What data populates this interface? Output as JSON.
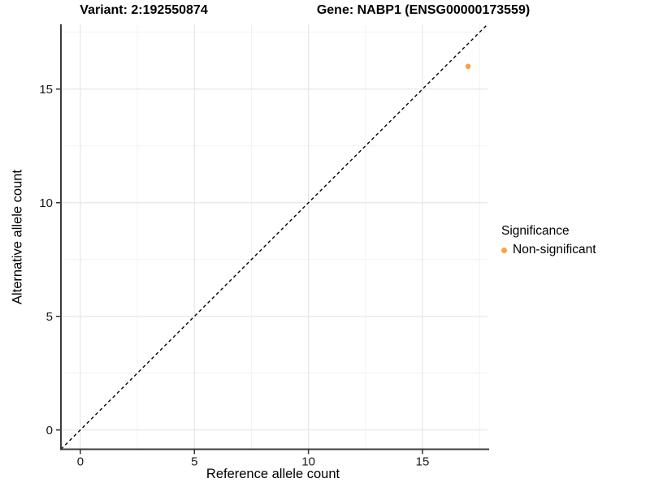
{
  "titles": {
    "variant": "Variant: 2:192550874",
    "gene": "Gene: NABP1 (ENSG00000173559)"
  },
  "chart_data": {
    "type": "scatter",
    "xlabel": "Reference allele count",
    "ylabel": "Alternative allele count",
    "xlim": [
      -0.85,
      17.85
    ],
    "ylim": [
      -0.85,
      17.85
    ],
    "xticks": [
      0,
      5,
      10,
      15
    ],
    "yticks": [
      0,
      5,
      10,
      15
    ],
    "minor_ticks": [
      2.5,
      7.5,
      12.5,
      17.5
    ],
    "grid": true,
    "identity_line": {
      "style": "dashed",
      "color": "#000000",
      "equation": "y = x"
    },
    "series": [
      {
        "name": "Non-significant",
        "color": "#F9A242",
        "points": [
          {
            "x": 17,
            "y": 16
          }
        ]
      }
    ],
    "legend": {
      "title": "Significance",
      "position": "right",
      "items": [
        {
          "label": "Non-significant",
          "color": "#F9A242"
        }
      ]
    }
  },
  "colors": {
    "background": "#FFFFFF",
    "axis_line": "#3C3C3C",
    "tick_mark": "#333333",
    "grid_major": "#E6E6E6",
    "grid_minor": "#F2F2F2",
    "tick_label": "#1A1A1A",
    "point": "#F9A242"
  }
}
